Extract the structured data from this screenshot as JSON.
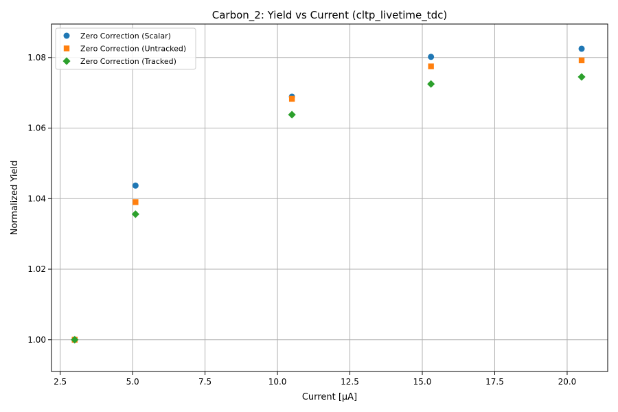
{
  "chart_data": {
    "type": "scatter",
    "title": "Carbon_2: Yield vs Current (cltp_livetime_tdc)",
    "xlabel": "Current [μA]",
    "ylabel": "Normalized Yield",
    "xlim": [
      2.2,
      21.4
    ],
    "ylim": [
      0.991,
      1.0895
    ],
    "xticks": [
      2.5,
      5.0,
      7.5,
      10.0,
      12.5,
      15.0,
      17.5,
      20.0
    ],
    "xtick_labels": [
      "2.5",
      "5.0",
      "7.5",
      "10.0",
      "12.5",
      "15.0",
      "17.5",
      "20.0"
    ],
    "yticks": [
      1.0,
      1.02,
      1.04,
      1.06,
      1.08
    ],
    "ytick_labels": [
      "1.00",
      "1.02",
      "1.04",
      "1.06",
      "1.08"
    ],
    "grid": true,
    "legend_position": "top-left",
    "series": [
      {
        "name": "Zero Correction (Scalar)",
        "marker": "circle",
        "color": "#1f77b4",
        "points": [
          [
            3.0,
            1.0
          ],
          [
            5.1,
            1.0437
          ],
          [
            10.5,
            1.0689
          ],
          [
            15.3,
            1.0802
          ],
          [
            20.5,
            1.0825
          ]
        ]
      },
      {
        "name": "Zero Correction (Untracked)",
        "marker": "square",
        "color": "#ff7f0e",
        "points": [
          [
            3.0,
            1.0
          ],
          [
            5.1,
            1.039
          ],
          [
            10.5,
            1.0683
          ],
          [
            15.3,
            1.0775
          ],
          [
            20.5,
            1.0792
          ]
        ]
      },
      {
        "name": "Zero Correction (Tracked)",
        "marker": "diamond",
        "color": "#2ca02c",
        "points": [
          [
            3.0,
            1.0
          ],
          [
            5.1,
            1.0356
          ],
          [
            10.5,
            1.0638
          ],
          [
            15.3,
            1.0725
          ],
          [
            20.5,
            1.0745
          ]
        ]
      }
    ]
  }
}
